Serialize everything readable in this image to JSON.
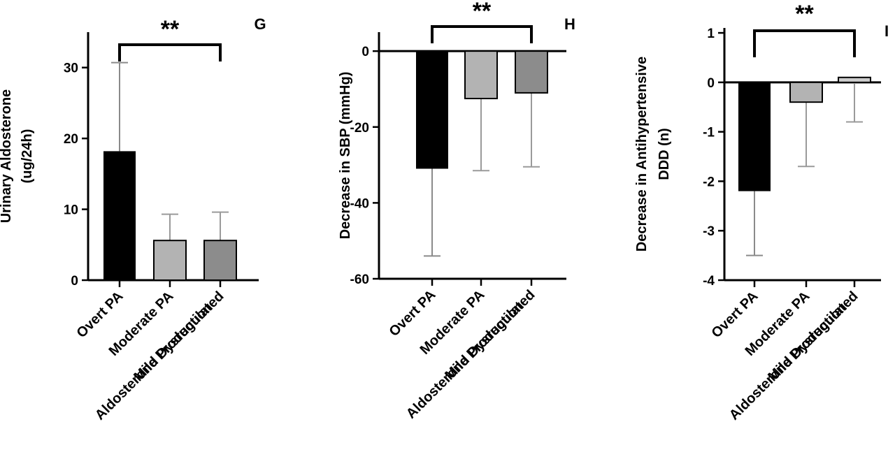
{
  "chart_data": [
    {
      "type": "bar",
      "panel_label": "G",
      "ylabel": [
        "Urinary Aldosterone",
        "(ug/24h)"
      ],
      "categories": [
        "Overt PA",
        "Moderate PA",
        [
          "Mild Dysregulated",
          "Aldosterone Production"
        ]
      ],
      "values": [
        18.2,
        5.6,
        5.6
      ],
      "errors": [
        12.5,
        3.7,
        4.0
      ],
      "error_direction": "up",
      "colors": [
        "#000000",
        "#b3b3b3",
        "#8c8c8c"
      ],
      "ylim": [
        0,
        35
      ],
      "yticks": [
        0,
        10,
        20,
        30
      ],
      "significance": {
        "label": "**",
        "from": 0,
        "to": 2
      }
    },
    {
      "type": "bar",
      "panel_label": "H",
      "ylabel": [
        "Decrease in SBP (mmHg)"
      ],
      "categories": [
        "Overt PA",
        "Moderate PA",
        [
          "Mild Dysregulated",
          "Aldosterone Production"
        ]
      ],
      "values": [
        -31,
        -12.5,
        -11
      ],
      "errors": [
        23,
        19,
        19.5
      ],
      "error_direction": "down",
      "colors": [
        "#000000",
        "#b3b3b3",
        "#8c8c8c"
      ],
      "ylim": [
        -60,
        5
      ],
      "yticks": [
        -60,
        -40,
        -20,
        0
      ],
      "significance": {
        "label": "**",
        "from": 0,
        "to": 2
      }
    },
    {
      "type": "bar",
      "panel_label": "I",
      "ylabel": [
        "Decrease in Antihypertensive",
        "DDD (n)"
      ],
      "categories": [
        "Overt PA",
        "Moderate PA",
        [
          "Mild Dysregulated",
          "Aldosterone Production"
        ]
      ],
      "values": [
        -2.2,
        -0.4,
        0.1
      ],
      "errors": [
        1.3,
        1.3,
        0.9
      ],
      "error_direction": "down",
      "colors": [
        "#000000",
        "#b3b3b3",
        "#cccccc"
      ],
      "ylim": [
        -4,
        1.1
      ],
      "yticks": [
        -4,
        -3,
        -2,
        -1,
        0,
        1
      ],
      "significance": {
        "label": "**",
        "from": 0,
        "to": 2
      }
    }
  ]
}
